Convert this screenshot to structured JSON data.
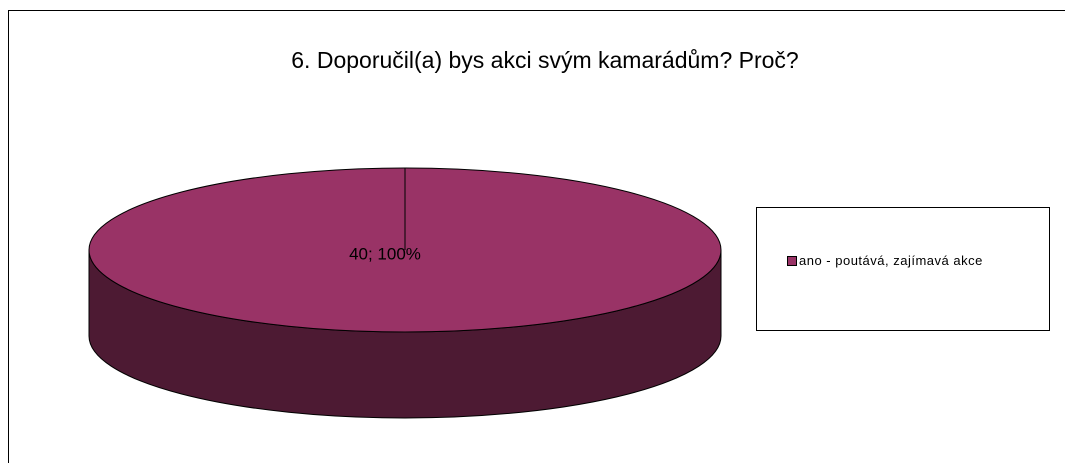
{
  "chart_data": {
    "type": "pie",
    "title": "6. Doporučil(a) bys akci svým kamarádům? Proč?",
    "categories": [
      "ano - poutává, zajímavá akce"
    ],
    "values": [
      40
    ],
    "value_labels": [
      "40; 100%"
    ],
    "colors": [
      "#993366"
    ],
    "legend": "right"
  }
}
